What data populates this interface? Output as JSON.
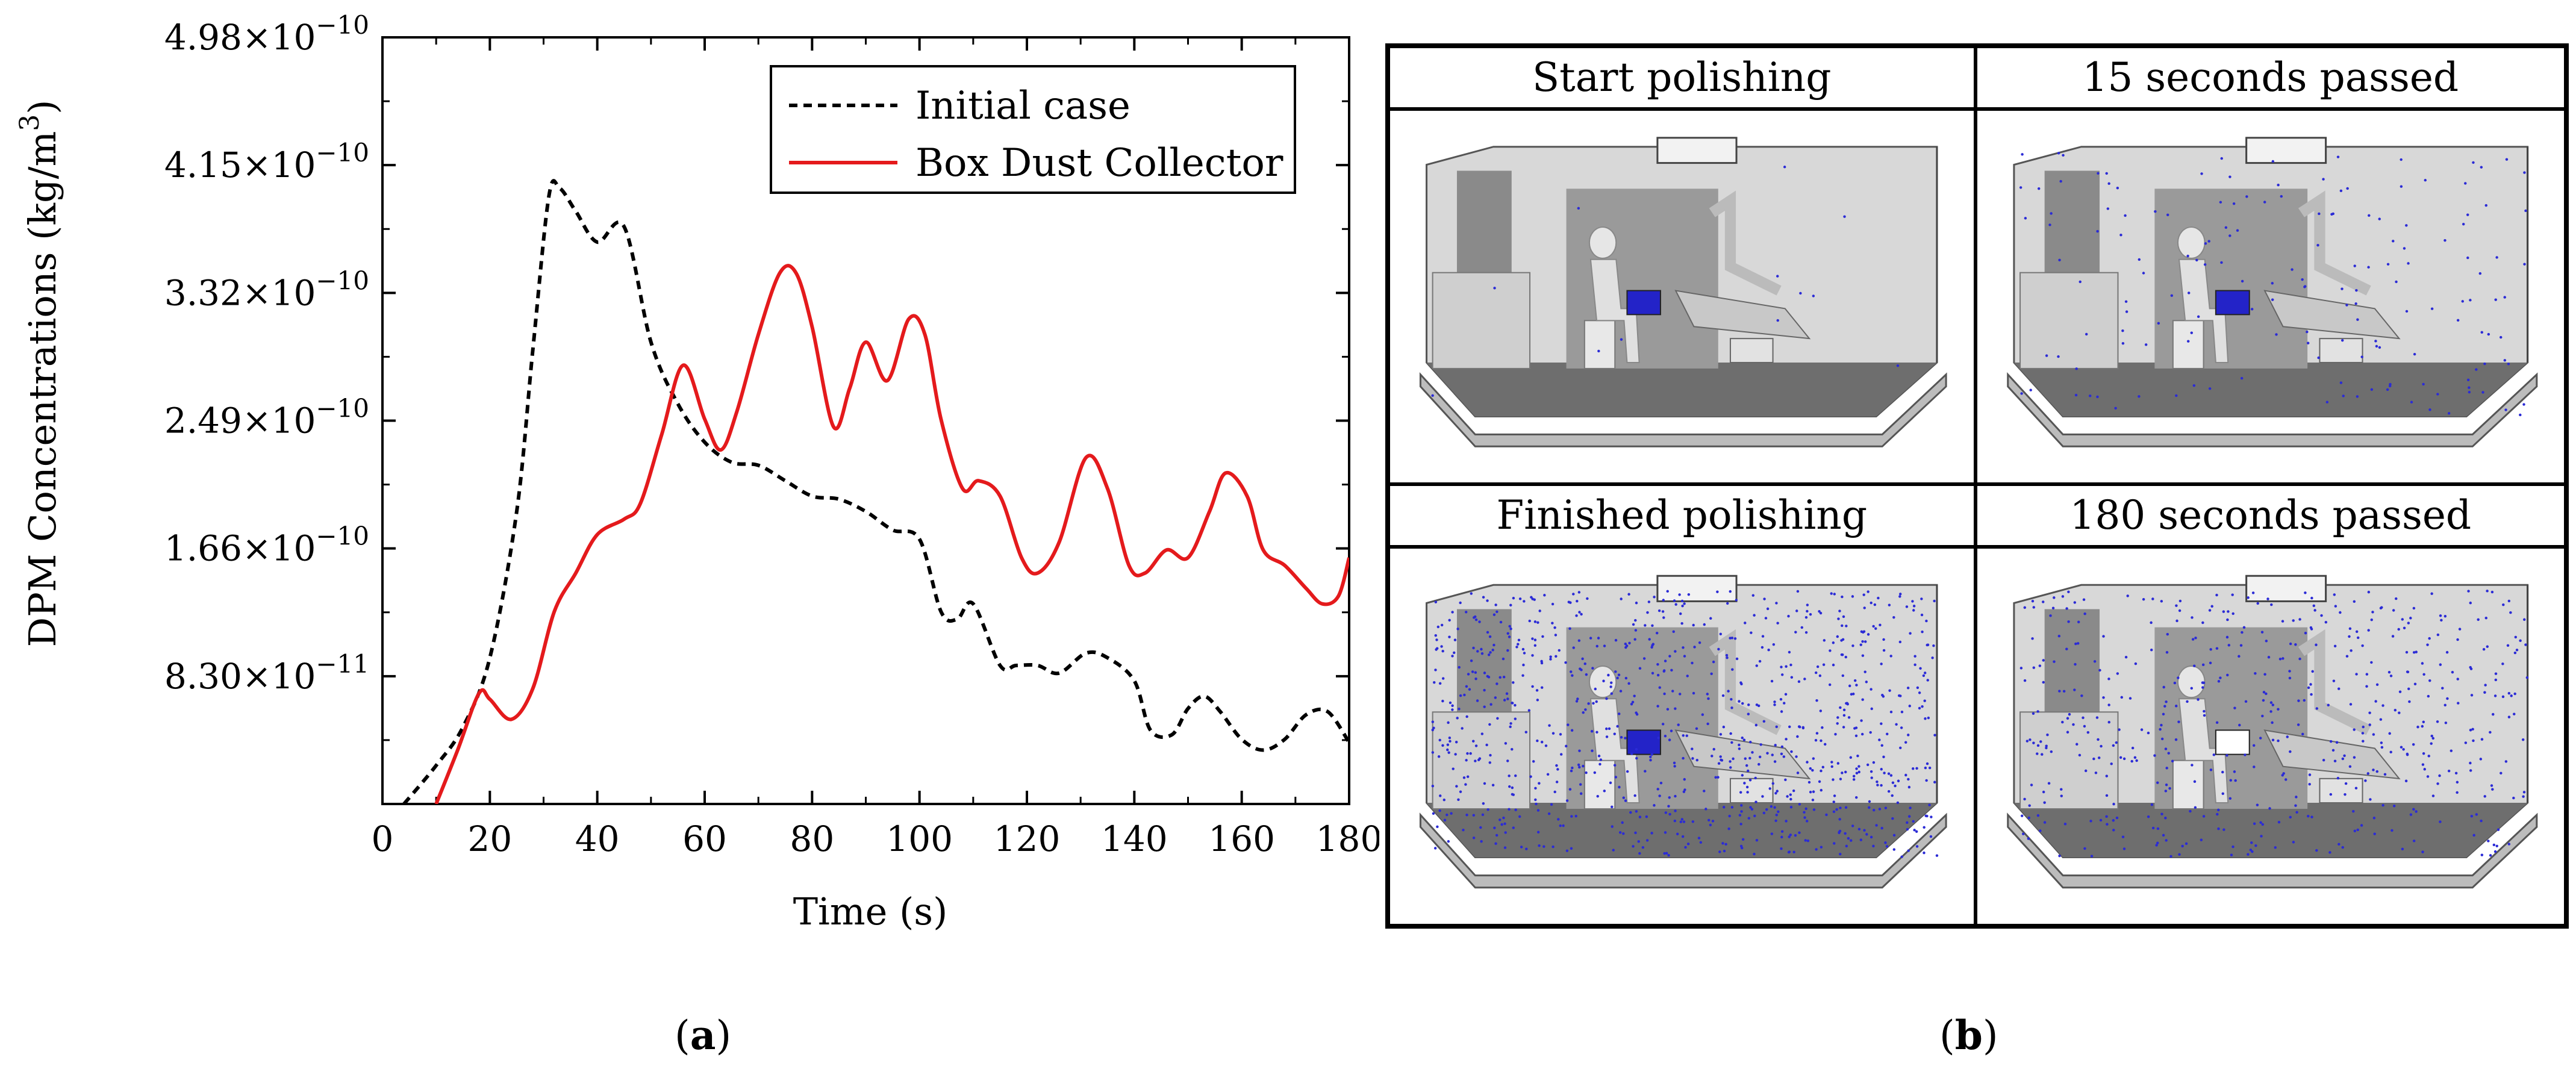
{
  "chart_data": {
    "type": "line",
    "xlabel": "Time (s)",
    "ylabel": "DPM Concentrations (kg/m",
    "ylabel_sup": "3",
    "ylabel_close": ")",
    "xlim": [
      0,
      180
    ],
    "ylim": [
      0,
      4.98e-10
    ],
    "x_ticks": [
      0,
      20,
      40,
      60,
      80,
      100,
      120,
      140,
      160,
      180
    ],
    "y_ticks": [
      {
        "value": 8.3e-11,
        "mantissa": "8.30",
        "exponent": "−11"
      },
      {
        "value": 1.66e-10,
        "mantissa": "1.66",
        "exponent": "−10"
      },
      {
        "value": 2.49e-10,
        "mantissa": "2.49",
        "exponent": "−10"
      },
      {
        "value": 3.32e-10,
        "mantissa": "3.32",
        "exponent": "−10"
      },
      {
        "value": 4.15e-10,
        "mantissa": "4.15",
        "exponent": "−10"
      },
      {
        "value": 4.98e-10,
        "mantissa": "4.98",
        "exponent": "−10"
      }
    ],
    "grid": false,
    "legend_position": "top-right",
    "series": [
      {
        "name": "Initial case",
        "style": "dashed",
        "color": "#000000",
        "x": [
          4,
          10,
          15,
          20,
          25,
          28,
          31,
          33,
          36,
          40,
          45,
          50,
          55,
          60,
          65,
          70,
          75,
          80,
          85,
          90,
          95,
          100,
          104,
          107,
          110,
          115,
          118,
          122,
          126,
          131,
          135,
          140,
          143,
          147,
          150,
          153,
          156,
          160,
          164,
          168,
          172,
          176,
          180
        ],
        "y": [
          0.0,
          2.5e-11,
          5e-11,
          9.5e-11,
          1.9e-10,
          2.95e-10,
          3.95e-10,
          4e-10,
          3.85e-10,
          3.65e-10,
          3.75e-10,
          3e-10,
          2.6e-10,
          2.35e-10,
          2.22e-10,
          2.2e-10,
          2.1e-10,
          2e-10,
          1.98e-10,
          1.9e-10,
          1.78e-10,
          1.72e-10,
          1.25e-10,
          1.2e-10,
          1.3e-10,
          9e-11,
          9e-11,
          9e-11,
          8.5e-11,
          9.8e-11,
          9.5e-11,
          8e-11,
          4.8e-11,
          4.5e-11,
          6.2e-11,
          7e-11,
          6e-11,
          4.2e-11,
          3.5e-11,
          4.2e-11,
          5.8e-11,
          6e-11,
          4e-11
        ]
      },
      {
        "name": "Box Dust Collector",
        "style": "solid",
        "color": "#e41a1c",
        "x": [
          10,
          14,
          18,
          20,
          24,
          28,
          32,
          36,
          40,
          45,
          48,
          52,
          56,
          60,
          63,
          66,
          70,
          74,
          77,
          80,
          84,
          87,
          90,
          94,
          98,
          101,
          104,
          108,
          111,
          115,
          119,
          122,
          126,
          131,
          135,
          139,
          142,
          146,
          150,
          154,
          157,
          161,
          164,
          168,
          172,
          175,
          178,
          180
        ],
        "y": [
          0.0,
          3.5e-11,
          7.2e-11,
          6.8e-11,
          5.5e-11,
          7.5e-11,
          1.25e-10,
          1.5e-10,
          1.75e-10,
          1.85e-10,
          1.95e-10,
          2.4e-10,
          2.85e-10,
          2.5e-10,
          2.3e-10,
          2.55e-10,
          3.05e-10,
          3.45e-10,
          3.45e-10,
          3.1e-10,
          2.45e-10,
          2.7e-10,
          3e-10,
          2.75e-10,
          3.15e-10,
          3.05e-10,
          2.5e-10,
          2.05e-10,
          2.1e-10,
          2e-10,
          1.6e-10,
          1.5e-10,
          1.7e-10,
          2.25e-10,
          2.05e-10,
          1.55e-10,
          1.5e-10,
          1.65e-10,
          1.6e-10,
          1.9e-10,
          2.15e-10,
          2e-10,
          1.65e-10,
          1.55e-10,
          1.4e-10,
          1.3e-10,
          1.35e-10,
          1.6e-10
        ]
      }
    ]
  },
  "panel_b": {
    "cells": [
      {
        "title": "Start polishing",
        "particle_density": 12,
        "collector_particles": true
      },
      {
        "title": "15 seconds passed",
        "particle_density": 160,
        "collector_particles": true
      },
      {
        "title": "Finished polishing",
        "particle_density": 900,
        "collector_particles": true
      },
      {
        "title": "180 seconds passed",
        "particle_density": 520,
        "collector_particles": false
      }
    ],
    "particle_color": "#2b2bd6"
  },
  "captions": {
    "a_open": "(",
    "a_letter": "a",
    "a_close": ")",
    "b_open": "(",
    "b_letter": "b",
    "b_close": ")"
  }
}
